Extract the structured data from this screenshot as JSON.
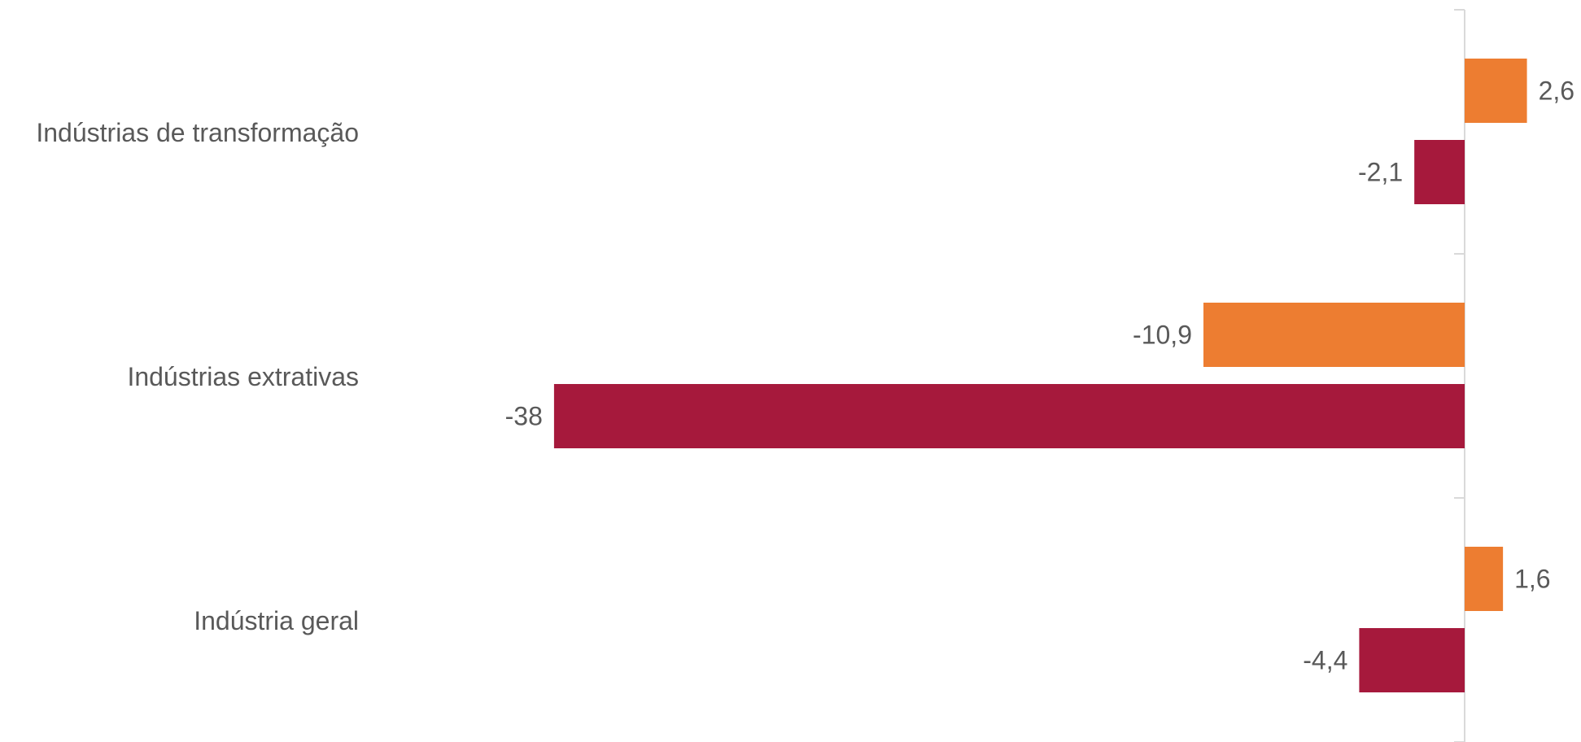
{
  "chart_data": {
    "type": "bar",
    "orientation": "horizontal",
    "categories": [
      "Indústrias de transformação",
      "Indústrias extrativas",
      "Indústria geral"
    ],
    "series": [
      {
        "color": "#ED7D31",
        "values": [
          2.6,
          -10.9,
          1.6
        ],
        "labels": [
          "2,6",
          "-10,9",
          "1,6"
        ]
      },
      {
        "color": "#A6193C",
        "values": [
          -2.1,
          -38,
          -4.4
        ],
        "labels": [
          "-2,1",
          "-38",
          "-4,4"
        ]
      }
    ],
    "title": "",
    "xlabel": "",
    "ylabel": "",
    "xlim": [
      -38,
      5
    ],
    "grid": false,
    "legend": "none",
    "axis_color": "#D9D9D9"
  }
}
